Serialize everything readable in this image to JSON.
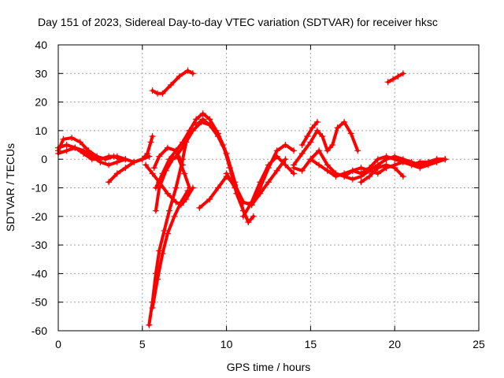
{
  "chart_data": {
    "type": "scatter",
    "title": "Day 151 of 2023, Sidereal Day-to-day VTEC variation (SDTVAR) for receiver hksc",
    "xlabel": "GPS time / hours",
    "ylabel": "SDTVAR / TECUs",
    "xlim": [
      0,
      25
    ],
    "ylim": [
      -60,
      40
    ],
    "xticks": [
      0,
      5,
      10,
      15,
      20,
      25
    ],
    "yticks": [
      -60,
      -50,
      -40,
      -30,
      -20,
      -10,
      0,
      10,
      20,
      30,
      40
    ],
    "grid": true,
    "marker": "+",
    "color": "#ff0000",
    "series": [
      {
        "name": "s1",
        "x": [
          0,
          0.3,
          0.8,
          1.3,
          1.8,
          2.3,
          2.8,
          3.3,
          3.7
        ],
        "y": [
          3,
          7,
          7.5,
          6,
          3,
          1,
          0,
          1,
          0
        ]
      },
      {
        "name": "s2",
        "x": [
          0,
          0.5,
          1.0,
          1.5,
          2.0,
          2.5,
          3.0,
          3.5,
          4.0
        ],
        "y": [
          2,
          3,
          4,
          3,
          1,
          -1,
          -2,
          -1,
          0
        ]
      },
      {
        "name": "s3",
        "x": [
          0,
          0.5,
          1.0,
          1.5,
          2.0,
          2.5,
          3.0,
          3.5,
          4.0,
          4.5,
          5.0,
          5.4
        ],
        "y": [
          4,
          5,
          4,
          2,
          0,
          0,
          1,
          1,
          0,
          -1,
          0,
          1
        ]
      },
      {
        "name": "s4",
        "x": [
          3.0,
          3.5,
          4.0,
          4.5,
          5.0,
          5.3,
          5.5,
          5.6
        ],
        "y": [
          -8,
          -5,
          -3,
          -1,
          0,
          2,
          6,
          8
        ]
      },
      {
        "name": "s5",
        "x": [
          5.2,
          5.6,
          6.0,
          6.5,
          7.0,
          7.3,
          7.6,
          8.0
        ],
        "y": [
          -2,
          -5,
          -8,
          -12,
          -15,
          -16,
          -14,
          -10
        ]
      },
      {
        "name": "s6",
        "x": [
          5.4,
          5.6,
          5.8,
          6.0,
          6.3,
          6.6,
          7.0,
          7.4,
          7.6,
          7.8
        ],
        "y": [
          -58,
          -50,
          -40,
          -32,
          -25,
          -18,
          -10,
          0,
          6,
          10
        ]
      },
      {
        "name": "s7",
        "x": [
          5.6,
          5.9,
          6.2,
          6.5,
          6.9,
          7.3,
          7.7
        ],
        "y": [
          -52,
          -42,
          -33,
          -26,
          -20,
          -15,
          -11
        ]
      },
      {
        "name": "s8",
        "x": [
          5.8,
          6.0,
          6.4,
          6.8,
          7.1,
          7.5,
          7.8
        ],
        "y": [
          -18,
          -10,
          -4,
          0,
          1,
          -5,
          -10
        ]
      },
      {
        "name": "s9",
        "x": [
          5.7,
          6.0,
          6.5,
          7.0,
          7.4
        ],
        "y": [
          -3,
          1,
          4,
          3,
          -2
        ]
      },
      {
        "name": "s10",
        "x": [
          5.8,
          6.2,
          6.6,
          7.0,
          7.4,
          7.8,
          8.2,
          8.6,
          9.0,
          9.5,
          10.0
        ],
        "y": [
          -10,
          -5,
          0,
          3,
          6,
          10,
          14,
          16,
          14,
          9,
          2
        ]
      },
      {
        "name": "s11",
        "x": [
          7.0,
          7.5,
          8.0,
          8.5,
          9.0,
          9.5,
          10.0,
          10.5,
          11.0,
          11.3
        ],
        "y": [
          1,
          5,
          10,
          13,
          12,
          8,
          2,
          -8,
          -18,
          -22
        ]
      },
      {
        "name": "s12",
        "x": [
          8.2,
          8.6,
          9.0,
          9.4,
          9.8,
          10.2,
          10.6,
          11.0,
          11.3,
          11.6
        ],
        "y": [
          12,
          14,
          12,
          10,
          5,
          -3,
          -12,
          -18,
          -22,
          -20
        ]
      },
      {
        "name": "s13",
        "x": [
          8.4,
          9.0,
          9.5,
          10.0,
          10.5,
          11.0,
          11.5,
          12.0,
          12.5,
          13.0,
          13.5,
          14.0
        ],
        "y": [
          -17,
          -14,
          -10,
          -6,
          -9,
          -15,
          -16,
          -10,
          -3,
          3,
          5,
          3
        ]
      },
      {
        "name": "s14",
        "x": [
          10.0,
          10.5,
          11.0,
          11.5,
          12.0,
          12.5,
          13.0,
          13.5
        ],
        "y": [
          -5,
          -10,
          -15,
          -16,
          -12,
          -8,
          -4,
          0
        ]
      },
      {
        "name": "s15",
        "x": [
          11.0,
          11.5,
          12.0,
          12.5,
          13.0,
          13.5,
          14.0
        ],
        "y": [
          -20,
          -15,
          -8,
          -2,
          1,
          -2,
          -5
        ]
      },
      {
        "name": "s16",
        "x": [
          5.6,
          5.9,
          6.2,
          6.7,
          7.2,
          7.7,
          8.0
        ],
        "y": [
          24,
          23,
          23,
          26,
          29,
          31,
          30
        ]
      },
      {
        "name": "s17",
        "x": [
          14.0,
          14.5,
          15.0,
          15.5,
          16.0,
          16.5,
          17.0,
          17.5,
          18.0,
          18.5,
          19.0,
          19.5,
          20.0,
          20.5,
          21.0,
          21.5,
          22.0,
          22.5,
          23.0
        ],
        "y": [
          -3,
          -4,
          0,
          3,
          -2,
          -5,
          -6,
          -4,
          -3,
          -4,
          -5,
          -3,
          -2,
          -1,
          -2,
          -3,
          -2,
          -1,
          0
        ]
      },
      {
        "name": "s18",
        "x": [
          14.0,
          14.5,
          15.0,
          15.4,
          15.7,
          16.0,
          16.3,
          16.6,
          17.0,
          17.4,
          17.8
        ],
        "y": [
          -2,
          2,
          6,
          10,
          8,
          3,
          5,
          11,
          13,
          9,
          3
        ]
      },
      {
        "name": "s19",
        "x": [
          14.5,
          14.8,
          15.1,
          15.4
        ],
        "y": [
          5,
          8,
          11,
          13
        ]
      },
      {
        "name": "s20",
        "x": [
          15.0,
          15.5,
          16.0,
          16.5,
          17.0,
          17.5,
          18.0,
          18.5,
          19.0,
          19.5,
          20.0,
          20.5,
          21.0,
          21.5,
          22.0,
          22.5,
          23.0
        ],
        "y": [
          0,
          -2,
          -4,
          -6,
          -5,
          -4,
          -5,
          -3,
          0,
          1,
          0,
          -1,
          -2,
          -1,
          -1,
          0,
          0
        ]
      },
      {
        "name": "s21",
        "x": [
          17.0,
          17.5,
          18.0,
          18.5,
          19.0,
          19.5,
          20.0,
          20.5,
          21.0,
          21.5,
          22.0,
          22.5,
          23.0
        ],
        "y": [
          -6,
          -7,
          -6,
          -4,
          -2,
          0,
          1,
          0,
          -1,
          -2,
          -1,
          0,
          0
        ]
      },
      {
        "name": "s22",
        "x": [
          18.0,
          18.5,
          19.0,
          19.5,
          20.0,
          20.5
        ],
        "y": [
          -8,
          -6,
          -3,
          -2,
          -3,
          -6
        ]
      },
      {
        "name": "s23",
        "x": [
          19.6,
          19.9,
          20.2,
          20.5
        ],
        "y": [
          27,
          28,
          29,
          30
        ]
      }
    ]
  }
}
